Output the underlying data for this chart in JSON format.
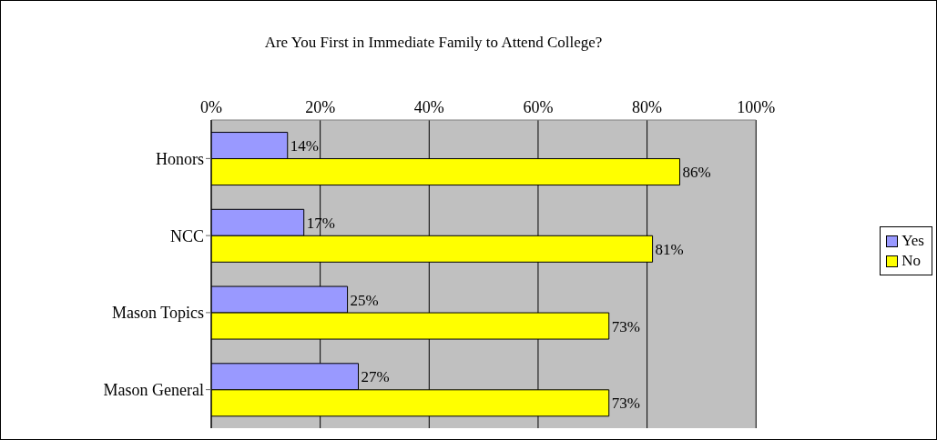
{
  "chart_data": {
    "type": "bar",
    "orientation": "horizontal",
    "title": "Are You First in Immediate Family to Attend College?",
    "categories": [
      "Honors",
      "NCC",
      "Mason Topics",
      "Mason General"
    ],
    "series": [
      {
        "name": "Yes",
        "color": "#9999ff",
        "values": [
          14,
          17,
          25,
          27
        ],
        "value_labels": [
          "14%",
          "17%",
          "25%",
          "27%"
        ]
      },
      {
        "name": "No",
        "color": "#ffff00",
        "values": [
          86,
          81,
          73,
          73
        ],
        "value_labels": [
          "86%",
          "81%",
          "73%",
          "73%"
        ]
      }
    ],
    "xlim": [
      0,
      100
    ],
    "xticks": [
      {
        "value": 0,
        "label": "0%"
      },
      {
        "value": 20,
        "label": "20%"
      },
      {
        "value": 40,
        "label": "40%"
      },
      {
        "value": 60,
        "label": "60%"
      },
      {
        "value": 80,
        "label": "80%"
      },
      {
        "value": 100,
        "label": "100%"
      }
    ],
    "grid": "x",
    "legend": "right"
  }
}
